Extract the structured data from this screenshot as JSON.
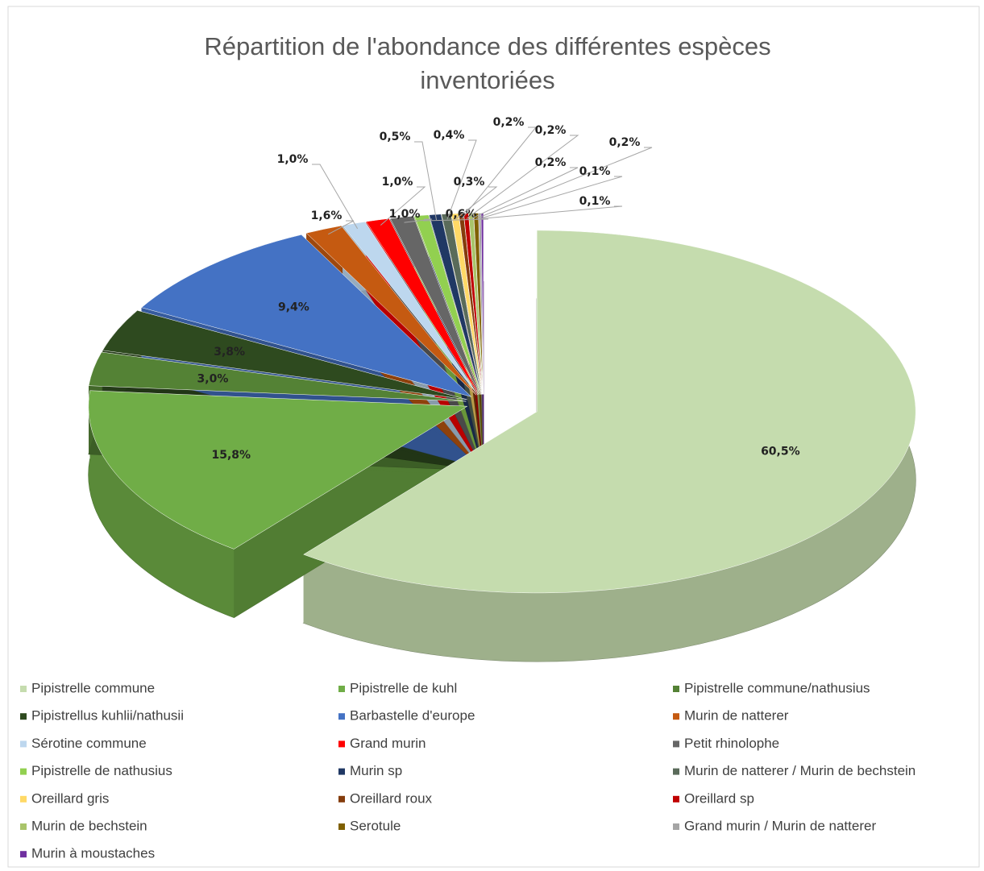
{
  "chart_data": {
    "type": "pie",
    "title": [
      "Répartition de l'abondance des différentes espèces",
      "inventoriées"
    ],
    "categories": [
      "Pipistrelle commune",
      "Pipistrelle de kuhl",
      "Pipistrelle commune/nathusius",
      "Pipistrellus  kuhlii/nathusii",
      "Barbastelle d'europe",
      "Murin de natterer",
      "Sérotine commune",
      "Grand murin",
      "Petit rhinolophe",
      "Pipistrelle de nathusius",
      "Murin sp",
      "Murin de natterer / Murin de bechstein",
      "Oreillard gris",
      "Oreillard roux",
      "Oreillard sp",
      "Murin de bechstein",
      "Serotule",
      "Grand murin / Murin de natterer",
      "Murin à moustaches"
    ],
    "values": [
      60.5,
      15.8,
      3.0,
      3.8,
      9.4,
      1.6,
      1.0,
      1.0,
      1.0,
      0.6,
      0.5,
      0.4,
      0.3,
      0.2,
      0.2,
      0.2,
      0.2,
      0.1,
      0.1
    ],
    "value_labels": [
      "60,5%",
      "15,8%",
      "3,0%",
      "3,8%",
      "9,4%",
      "1,6%",
      "1,0%",
      "1,0%",
      "1,0%",
      "0,6%",
      "0,5%",
      "0,4%",
      "0,3%",
      "0,2%",
      "0,2%",
      "0,2%",
      "0,2%",
      "0,1%",
      "0,1%"
    ],
    "colors": [
      "#c5dcae",
      "#70ad47",
      "#548235",
      "#2e4a1f",
      "#4472c4",
      "#c55a11",
      "#bdd7ee",
      "#ff0000",
      "#666666",
      "#92d050",
      "#203864",
      "#5a6b5a",
      "#ffd966",
      "#843c0c",
      "#c00000",
      "#a9c46a",
      "#7f6000",
      "#a5a5a5",
      "#7030a0"
    ],
    "legend": "bottom"
  }
}
